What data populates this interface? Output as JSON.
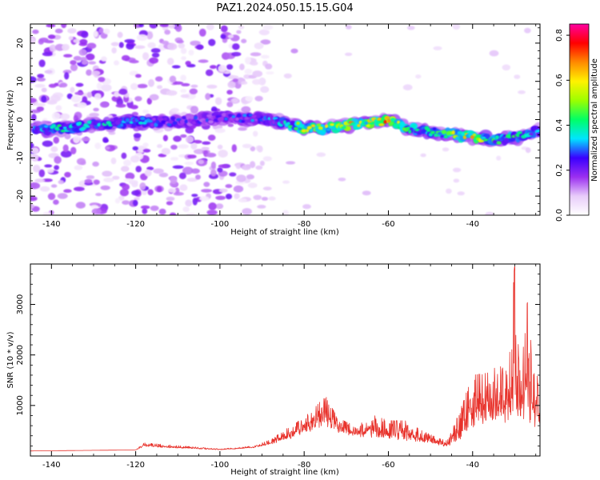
{
  "figure": {
    "title": "PAZ1.2024.050.15.15.G04"
  },
  "chart_data": [
    {
      "type": "heatmap",
      "title": "PAZ1.2024.050.15.15.G04",
      "xlabel": "Height of straight line (km)",
      "ylabel": "Frequency (Hz)",
      "xlim": [
        -145,
        -24
      ],
      "ylim": [
        -25,
        25
      ],
      "x_ticks": [
        -140,
        -120,
        -100,
        -80,
        -60,
        -40
      ],
      "y_ticks": [
        -20,
        -10,
        0,
        10,
        20
      ],
      "colorbar": {
        "label": "Normalized spectral amplitude",
        "range": [
          0,
          0.85
        ],
        "ticks": [
          0.0,
          0.2,
          0.4,
          0.6,
          0.8
        ],
        "colormap": [
          "#ffffff",
          "#e8ccfa",
          "#9b2ff0",
          "#3a00ff",
          "#00e5ff",
          "#00ff66",
          "#9cff00",
          "#fff200",
          "#ff8a00",
          "#ff0000",
          "#ff00a0"
        ]
      },
      "ridge": {
        "x": [
          -144,
          -140,
          -130,
          -120,
          -110,
          -100,
          -90,
          -85,
          -80,
          -75,
          -70,
          -65,
          -60,
          -55,
          -50,
          -45,
          -40,
          -35,
          -30,
          -25
        ],
        "frequency": [
          -2.5,
          -2.5,
          -1.5,
          -0.5,
          -0.5,
          0.5,
          0.2,
          -0.8,
          -2.2,
          -2.3,
          -1.6,
          -0.8,
          -0.3,
          -2.3,
          -3.2,
          -3.8,
          -4.6,
          -5.3,
          -4.8,
          -3.0
        ],
        "peak_amplitude": [
          0.4,
          0.45,
          0.4,
          0.4,
          0.3,
          0.3,
          0.35,
          0.4,
          0.62,
          0.6,
          0.72,
          0.65,
          0.85,
          0.5,
          0.45,
          0.6,
          0.72,
          0.5,
          0.45,
          0.4
        ]
      },
      "noise_region": {
        "x_from": -145,
        "x_to": -88,
        "amplitude": 0.15
      }
    },
    {
      "type": "line",
      "xlabel": "Height of straight line (km)",
      "ylabel": "SNR (10 * v/v)",
      "xlim": [
        -145,
        -24
      ],
      "ylim": [
        0,
        3800
      ],
      "x_ticks": [
        -140,
        -120,
        -100,
        -80,
        -60,
        -40
      ],
      "y_ticks": [
        1000,
        2000,
        3000
      ],
      "color": "#e8312a",
      "envelope": {
        "x": [
          -145,
          -120,
          -118,
          -100,
          -92,
          -88,
          -84,
          -82,
          -78,
          -75,
          -72,
          -68,
          -64,
          -60,
          -56,
          -52,
          -48,
          -46,
          -43,
          -40,
          -36,
          -34,
          -32,
          -30,
          -29,
          -27,
          -26,
          -25,
          -24
        ],
        "base": [
          100,
          120,
          180,
          120,
          160,
          220,
          300,
          380,
          500,
          600,
          420,
          380,
          350,
          320,
          300,
          260,
          200,
          180,
          300,
          550,
          650,
          700,
          650,
          700,
          650,
          650,
          600,
          500,
          600
        ],
        "amplitude": [
          100,
          120,
          260,
          140,
          200,
          320,
          550,
          650,
          900,
          1200,
          750,
          600,
          820,
          700,
          700,
          500,
          350,
          300,
          900,
          1600,
          1650,
          1800,
          1700,
          3800,
          1900,
          3050,
          2300,
          1900,
          1000
        ]
      }
    }
  ]
}
